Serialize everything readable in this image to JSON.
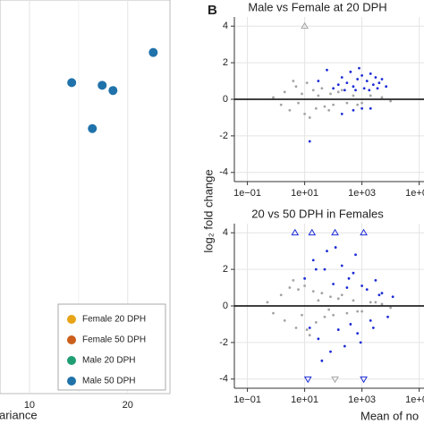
{
  "chart_data": [
    {
      "type": "scatter",
      "xlabel": "ariance",
      "xlim": [
        7,
        24.3
      ],
      "ylim": [
        -20,
        10
      ],
      "xticks": [
        10,
        20
      ],
      "xminor": [
        15
      ],
      "grid": true,
      "legend": "bottom-right",
      "radius": 5,
      "series": [
        {
          "name": "Female 20 DPH",
          "color": "#e8a317",
          "x": [],
          "values": []
        },
        {
          "name": "Female 50 DPH",
          "color": "#cc5f1c",
          "x": [],
          "values": []
        },
        {
          "name": "Male 20 DPH",
          "color": "#1f9e73",
          "x": [],
          "values": []
        },
        {
          "name": "Male 50 DPH",
          "color": "#1f72aa",
          "x": [
            22.6,
            14.3,
            17.4,
            18.5,
            16.4
          ],
          "values": [
            6.0,
            3.7,
            3.5,
            3.1,
            0.2
          ]
        }
      ]
    },
    {
      "type": "scatter",
      "panel_label": "B",
      "title": "Male vs Female at 20 DPH",
      "ylabel": "log₂ fold change",
      "xscale": "log",
      "xlim": [
        0.035,
        500000
      ],
      "ylim": [
        -4.5,
        4.5
      ],
      "xticks": [
        {
          "value": 0.1,
          "label": "1e−01"
        },
        {
          "value": 10,
          "label": "1e+01"
        },
        {
          "value": 1000,
          "label": "1e+03"
        },
        {
          "value": 100000,
          "label": "1e+05"
        }
      ],
      "yticks": [
        -4,
        -2,
        0,
        2,
        4
      ],
      "hline": 0,
      "grid": true,
      "radius": 1.4,
      "series": [
        {
          "color": "#a3a3a3",
          "shape": "circle",
          "x": [
            0.8,
            1.5,
            2,
            3,
            5,
            6,
            8,
            10,
            12,
            20,
            25,
            40,
            50,
            80,
            100,
            150,
            300,
            500,
            1000,
            2000,
            5000,
            10000,
            4,
            15,
            30,
            70,
            200,
            700
          ],
          "values": [
            0.1,
            -0.3,
            0.4,
            -0.6,
            0.7,
            -0.2,
            0.3,
            -0.8,
            0.9,
            0.5,
            -0.5,
            0.6,
            -0.4,
            0.3,
            -0.3,
            0.4,
            -0.2,
            0.2,
            -0.2,
            0.2,
            0.1,
            -0.1,
            1.0,
            -1.0,
            0.2,
            -0.6,
            0.5,
            -0.3
          ]
        },
        {
          "color": "#1c2bd6",
          "shape": "circle",
          "x": [
            150,
            200,
            300,
            400,
            500,
            700,
            1000,
            1200,
            1500,
            2000,
            2500,
            3000,
            4000,
            5000,
            7000,
            800,
            600,
            250,
            100,
            60,
            1800,
            3500,
            1000,
            500,
            15,
            200,
            2000,
            30
          ],
          "values": [
            0.8,
            1.2,
            0.9,
            1.5,
            0.7,
            1.1,
            1.3,
            0.6,
            1.0,
            1.4,
            0.8,
            1.2,
            0.9,
            1.1,
            0.7,
            1.7,
            0.5,
            0.5,
            0.6,
            1.6,
            0.5,
            0.6,
            -0.5,
            -0.6,
            -2.3,
            -0.8,
            -0.5,
            1.0
          ]
        },
        {
          "color": "#a3a3a3",
          "shape": "triangle-up",
          "x": [
            10
          ],
          "values": [
            4
          ]
        }
      ]
    },
    {
      "type": "scatter",
      "title": "20 vs 50 DPH in Females",
      "xlabel": "Mean of no",
      "xscale": "log",
      "xlim": [
        0.035,
        500000
      ],
      "ylim": [
        -4.5,
        4.5
      ],
      "xticks": [
        {
          "value": 0.1,
          "label": "1e−01"
        },
        {
          "value": 10,
          "label": "1e+01"
        },
        {
          "value": 1000,
          "label": "1e+03"
        },
        {
          "value": 100000,
          "label": "1e+05"
        }
      ],
      "yticks": [
        -4,
        -2,
        0,
        2,
        4
      ],
      "hline": 0,
      "grid": true,
      "radius": 1.4,
      "series": [
        {
          "color": "#a3a3a3",
          "shape": "circle",
          "x": [
            0.5,
            0.8,
            1.5,
            2,
            3,
            5,
            6,
            8,
            10,
            12,
            20,
            25,
            40,
            50,
            80,
            100,
            150,
            300,
            500,
            1000,
            2000,
            5000,
            10000,
            4,
            15,
            30,
            70,
            200,
            700,
            3000
          ],
          "values": [
            0.2,
            -0.4,
            0.6,
            -0.8,
            1.0,
            -1.2,
            0.9,
            -0.5,
            1.1,
            -1.3,
            0.8,
            -0.9,
            0.7,
            -0.6,
            0.5,
            -0.5,
            0.4,
            -0.4,
            0.3,
            -0.3,
            0.2,
            0.1,
            -0.1,
            1.4,
            -1.6,
            0.3,
            -0.2,
            0.6,
            -0.3,
            0.2
          ]
        },
        {
          "color": "#1c2bd6",
          "shape": "circle",
          "x": [
            10,
            20,
            30,
            50,
            60,
            80,
            100,
            150,
            200,
            300,
            400,
            500,
            700,
            1000,
            1500,
            2000,
            3000,
            5000,
            8000,
            40,
            120,
            250,
            600,
            900,
            15,
            350,
            2500,
            4000,
            12000,
            25
          ],
          "values": [
            1.5,
            2.5,
            -1.8,
            2.0,
            3.0,
            -2.5,
            1.2,
            -1.3,
            2.2,
            1.0,
            -1.0,
            1.8,
            -1.5,
            1.1,
            0.9,
            -0.8,
            1.4,
            0.7,
            -0.6,
            -3.0,
            3.2,
            -2.2,
            2.8,
            -2.0,
            -1.2,
            1.5,
            -1.2,
            0.6,
            0.5,
            2.0
          ]
        },
        {
          "color": "#1c2bd6",
          "shape": "triangle-up",
          "x": [
            4.6,
            18,
            115,
            1150
          ],
          "values": [
            4,
            4,
            4,
            4
          ]
        },
        {
          "color": "#1c2bd6",
          "shape": "triangle-down",
          "x": [
            13,
            1150
          ],
          "values": [
            -4,
            -4
          ]
        },
        {
          "color": "#a3a3a3",
          "shape": "triangle-down",
          "x": [
            115
          ],
          "values": [
            -4
          ]
        }
      ]
    }
  ]
}
